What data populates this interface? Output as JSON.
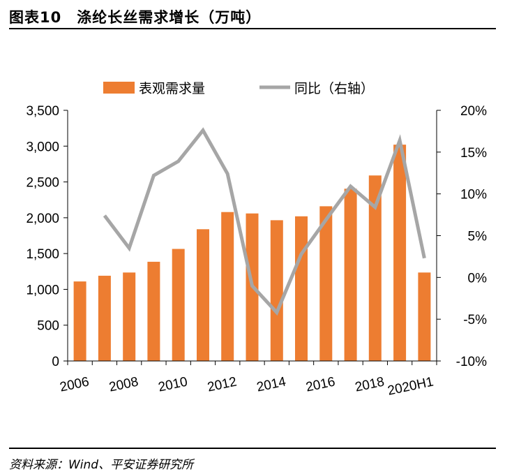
{
  "figure": {
    "number": "图表10",
    "title": "涤纶长丝需求增长（万吨）"
  },
  "source": "资料来源：Wind、平安证券研究所",
  "colors": {
    "bar": "#ED7D31",
    "line": "#A6A6A6"
  },
  "chart_data": {
    "type": "bar",
    "categories": [
      "2006",
      "2007",
      "2008",
      "2009",
      "2010",
      "2011",
      "2012",
      "2013",
      "2014",
      "2015",
      "2016",
      "2017",
      "2018",
      "2019",
      "2020H1"
    ],
    "x_tick_labels": [
      "2006",
      "2008",
      "2010",
      "2012",
      "2014",
      "2016",
      "2018",
      "2020H1"
    ],
    "series": [
      {
        "name": "表观需求量",
        "type": "bar",
        "axis": "left",
        "values": [
          1110,
          1190,
          1235,
          1385,
          1565,
          1840,
          2080,
          2060,
          1965,
          2020,
          2160,
          2405,
          2590,
          3020,
          1235
        ]
      },
      {
        "name": "同比（右轴）",
        "type": "line",
        "axis": "right",
        "values": [
          null,
          7.4,
          3.5,
          12.2,
          13.9,
          17.6,
          12.4,
          -1.0,
          -4.2,
          2.8,
          6.9,
          10.9,
          8.4,
          16.4,
          2.3
        ]
      }
    ],
    "y_left": {
      "min": 0,
      "max": 3500,
      "ticks": [
        "0",
        "500",
        "1,000",
        "1,500",
        "2,000",
        "2,500",
        "3,000",
        "3,500"
      ]
    },
    "y_right": {
      "min": -10,
      "max": 20,
      "ticks": [
        "-10%",
        "-5%",
        "0%",
        "5%",
        "10%",
        "15%",
        "20%"
      ]
    },
    "legend_position": "top",
    "grid": false
  }
}
